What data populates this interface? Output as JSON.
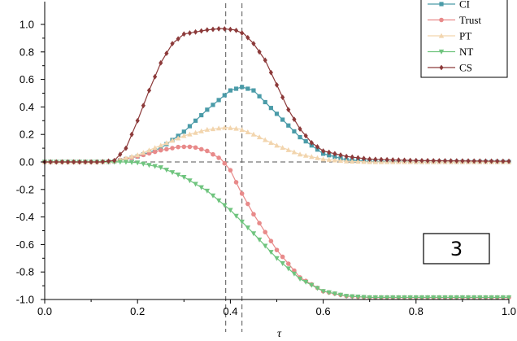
{
  "chart_data": {
    "type": "line",
    "title": "",
    "xlabel": "τ",
    "ylabel": "",
    "xlim": [
      0.0,
      1.0
    ],
    "ylim": [
      -1.0,
      1.0
    ],
    "x_ticks": [
      "0.0",
      "0.2",
      "0.4",
      "0.6",
      "0.8",
      "1.0"
    ],
    "y_ticks": [
      "1.0",
      "0.8",
      "0.6",
      "0.4",
      "0.2",
      "0.0",
      "-0.2",
      "-0.4",
      "-0.6",
      "-0.8",
      "-1.0"
    ],
    "grid": false,
    "reference_lines": {
      "horizontal": [
        0.0
      ],
      "vertical": [
        0.39,
        0.425
      ]
    },
    "legend_position": "top-right",
    "panel_label": "3",
    "marker_step": 0.0125,
    "series": [
      {
        "name": "CI",
        "color": "#4A9BA8",
        "marker": "square",
        "points": [
          [
            0.0,
            0.0
          ],
          [
            0.1,
            0.0
          ],
          [
            0.13,
            0.0
          ],
          [
            0.15,
            0.003
          ],
          [
            0.2,
            0.04
          ],
          [
            0.25,
            0.1
          ],
          [
            0.3,
            0.22
          ],
          [
            0.35,
            0.38
          ],
          [
            0.4,
            0.52
          ],
          [
            0.425,
            0.545
          ],
          [
            0.45,
            0.52
          ],
          [
            0.5,
            0.35
          ],
          [
            0.55,
            0.18
          ],
          [
            0.6,
            0.06
          ],
          [
            0.65,
            0.015
          ],
          [
            0.7,
            0.003
          ],
          [
            0.8,
            0.0
          ],
          [
            1.0,
            0.0
          ]
        ]
      },
      {
        "name": "Trust",
        "color": "#E88A8A",
        "marker": "circle",
        "points": [
          [
            0.0,
            0.0
          ],
          [
            0.12,
            0.0
          ],
          [
            0.15,
            0.005
          ],
          [
            0.2,
            0.04
          ],
          [
            0.25,
            0.085
          ],
          [
            0.29,
            0.11
          ],
          [
            0.32,
            0.11
          ],
          [
            0.35,
            0.08
          ],
          [
            0.38,
            0.02
          ],
          [
            0.4,
            -0.06
          ],
          [
            0.42,
            -0.2
          ],
          [
            0.45,
            -0.38
          ],
          [
            0.5,
            -0.64
          ],
          [
            0.55,
            -0.84
          ],
          [
            0.6,
            -0.94
          ],
          [
            0.65,
            -0.975
          ],
          [
            0.7,
            -0.985
          ],
          [
            1.0,
            -0.985
          ]
        ]
      },
      {
        "name": "PT",
        "color": "#F2D5AE",
        "marker": "triangle-up",
        "points": [
          [
            0.0,
            0.0
          ],
          [
            0.12,
            0.0
          ],
          [
            0.15,
            0.005
          ],
          [
            0.2,
            0.05
          ],
          [
            0.25,
            0.12
          ],
          [
            0.3,
            0.19
          ],
          [
            0.35,
            0.235
          ],
          [
            0.39,
            0.25
          ],
          [
            0.42,
            0.24
          ],
          [
            0.45,
            0.2
          ],
          [
            0.5,
            0.12
          ],
          [
            0.55,
            0.055
          ],
          [
            0.6,
            0.02
          ],
          [
            0.65,
            0.005
          ],
          [
            0.7,
            0.0
          ],
          [
            1.0,
            0.0
          ]
        ]
      },
      {
        "name": "NT",
        "color": "#6FC47E",
        "marker": "triangle-down",
        "points": [
          [
            0.0,
            0.0
          ],
          [
            0.14,
            0.0
          ],
          [
            0.17,
            0.0
          ],
          [
            0.2,
            -0.005
          ],
          [
            0.25,
            -0.04
          ],
          [
            0.3,
            -0.11
          ],
          [
            0.35,
            -0.21
          ],
          [
            0.4,
            -0.35
          ],
          [
            0.45,
            -0.52
          ],
          [
            0.5,
            -0.7
          ],
          [
            0.55,
            -0.85
          ],
          [
            0.6,
            -0.94
          ],
          [
            0.65,
            -0.975
          ],
          [
            0.7,
            -0.985
          ],
          [
            1.0,
            -0.985
          ]
        ]
      },
      {
        "name": "CS",
        "color": "#8C3A3A",
        "marker": "diamond",
        "points": [
          [
            0.0,
            0.0
          ],
          [
            0.12,
            0.0
          ],
          [
            0.15,
            0.01
          ],
          [
            0.175,
            0.1
          ],
          [
            0.2,
            0.3
          ],
          [
            0.225,
            0.52
          ],
          [
            0.25,
            0.72
          ],
          [
            0.275,
            0.86
          ],
          [
            0.3,
            0.93
          ],
          [
            0.35,
            0.96
          ],
          [
            0.38,
            0.97
          ],
          [
            0.41,
            0.96
          ],
          [
            0.43,
            0.93
          ],
          [
            0.45,
            0.86
          ],
          [
            0.475,
            0.74
          ],
          [
            0.5,
            0.56
          ],
          [
            0.525,
            0.38
          ],
          [
            0.55,
            0.24
          ],
          [
            0.575,
            0.14
          ],
          [
            0.6,
            0.08
          ],
          [
            0.65,
            0.04
          ],
          [
            0.7,
            0.02
          ],
          [
            0.8,
            0.01
          ],
          [
            1.0,
            0.005
          ]
        ]
      }
    ]
  }
}
